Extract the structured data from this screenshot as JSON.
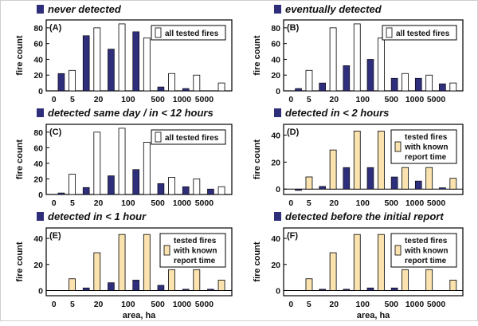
{
  "chart_data": [
    {
      "type": "bar",
      "title": "never detected",
      "panel_label": "(A)",
      "ylabel": "fire count",
      "xlabel": "",
      "categories": [
        "0",
        "5",
        "20",
        "100",
        "500",
        "1000",
        "5000"
      ],
      "ylim": [
        0,
        90
      ],
      "yticks": [
        0,
        20,
        40,
        60,
        80
      ],
      "series": [
        {
          "values": [
            22,
            70,
            53,
            75,
            5,
            3,
            0
          ],
          "color": "#2e2e7a"
        },
        {
          "name": "all tested fires",
          "values": [
            26,
            80,
            85,
            67,
            22,
            20,
            10
          ],
          "color": "#ffffff"
        }
      ]
    },
    {
      "type": "bar",
      "title": "eventually  detected",
      "panel_label": "(B)",
      "ylabel": "fire count",
      "xlabel": "",
      "categories": [
        "0",
        "5",
        "20",
        "100",
        "500",
        "1000",
        "5000"
      ],
      "ylim": [
        0,
        90
      ],
      "yticks": [
        0,
        20,
        40,
        60,
        80
      ],
      "series": [
        {
          "values": [
            3,
            10,
            32,
            40,
            16,
            16,
            9
          ],
          "color": "#2e2e7a"
        },
        {
          "name": "all tested fires",
          "values": [
            26,
            80,
            85,
            67,
            22,
            20,
            10
          ],
          "color": "#ffffff"
        }
      ]
    },
    {
      "type": "bar",
      "title": "detected same day / in < 12 hours",
      "panel_label": "(C)",
      "ylabel": "fire count",
      "xlabel": "",
      "categories": [
        "0",
        "5",
        "20",
        "100",
        "500",
        "1000",
        "5000"
      ],
      "ylim": [
        0,
        90
      ],
      "yticks": [
        0,
        20,
        40,
        60,
        80
      ],
      "series": [
        {
          "values": [
            2,
            9,
            24,
            32,
            14,
            10,
            7
          ],
          "color": "#2e2e7a"
        },
        {
          "name": "all tested fires",
          "values": [
            26,
            80,
            85,
            67,
            22,
            20,
            10
          ],
          "color": "#ffffff"
        }
      ]
    },
    {
      "type": "bar",
      "title": "detected in < 2 hours",
      "panel_label": "(D)",
      "ylabel": "fire count",
      "xlabel": "",
      "categories": [
        "0",
        "5",
        "20",
        "100",
        "500",
        "1000",
        "5000"
      ],
      "ylim": [
        -4,
        48
      ],
      "yticks": [
        0,
        20,
        40
      ],
      "series": [
        {
          "values": [
            -1,
            2,
            16,
            16,
            9,
            6,
            1
          ],
          "color": "#2e2e7a"
        },
        {
          "name": "tested fires with known report time",
          "values": [
            9,
            29,
            43,
            43,
            16,
            16,
            8
          ],
          "color": "#fbe3b0"
        }
      ]
    },
    {
      "type": "bar",
      "title": "detected in < 1 hour",
      "panel_label": "(E)",
      "ylabel": "fire count",
      "xlabel": "area, ha",
      "categories": [
        "0",
        "5",
        "20",
        "100",
        "500",
        "1000",
        "5000"
      ],
      "ylim": [
        -4,
        48
      ],
      "yticks": [
        0,
        20,
        40
      ],
      "series": [
        {
          "values": [
            0,
            2,
            6,
            8,
            4,
            1,
            1
          ],
          "color": "#2e2e7a"
        },
        {
          "name": "tested fires with known report time",
          "values": [
            9,
            29,
            43,
            43,
            16,
            16,
            8
          ],
          "color": "#fbe3b0"
        }
      ]
    },
    {
      "type": "bar",
      "title": "detected before the initial report",
      "panel_label": "(F)",
      "ylabel": "fire count",
      "xlabel": "area, ha",
      "categories": [
        "0",
        "5",
        "20",
        "100",
        "500",
        "1000",
        "5000"
      ],
      "ylim": [
        -4,
        48
      ],
      "yticks": [
        0,
        20,
        40
      ],
      "series": [
        {
          "values": [
            0,
            1,
            1,
            2,
            2,
            0,
            0
          ],
          "color": "#2e2e7a"
        },
        {
          "name": "tested fires with known report time",
          "values": [
            9,
            29,
            43,
            43,
            16,
            16,
            8
          ],
          "color": "#fbe3b0"
        }
      ]
    }
  ]
}
